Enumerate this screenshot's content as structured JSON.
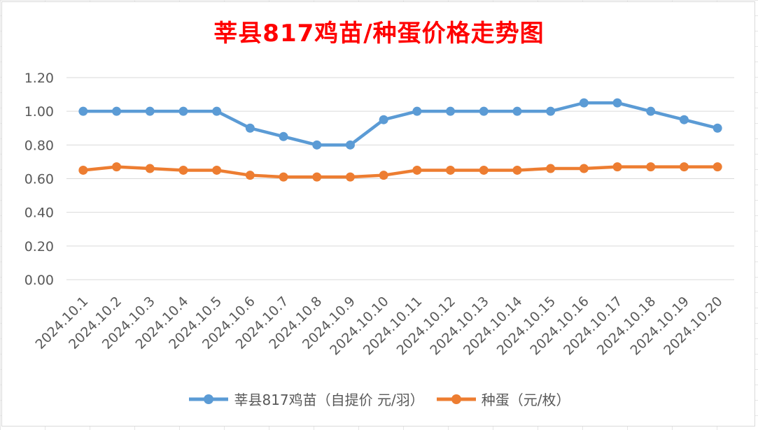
{
  "chart_data": {
    "type": "line",
    "title": "莘县817鸡苗/种蛋价格走势图",
    "categories": [
      "2024.10.1",
      "2024.10.2",
      "2024.10.3",
      "2024.10.4",
      "2024.10.5",
      "2024.10.6",
      "2024.10.7",
      "2024.10.8",
      "2024.10.9",
      "2024.10.10",
      "2024.10.11",
      "2024.10.12",
      "2024.10.13",
      "2024.10.14",
      "2024.10.15",
      "2024.10.16",
      "2024.10.17",
      "2024.10.18",
      "2024.10.19",
      "2024.10.20"
    ],
    "y_ticks": [
      "0.00",
      "0.20",
      "0.40",
      "0.60",
      "0.80",
      "1.00",
      "1.20"
    ],
    "ylim": [
      0,
      1.2
    ],
    "grid": true,
    "legend_position": "bottom",
    "series": [
      {
        "name": "莘县817鸡苗（自提价 元/羽）",
        "color": "#5b9bd5",
        "values": [
          1.0,
          1.0,
          1.0,
          1.0,
          1.0,
          0.9,
          0.85,
          0.8,
          0.8,
          0.95,
          1.0,
          1.0,
          1.0,
          1.0,
          1.0,
          1.05,
          1.05,
          1.0,
          0.95,
          0.9
        ]
      },
      {
        "name": "种蛋（元/枚）",
        "color": "#ed7d31",
        "values": [
          0.65,
          0.67,
          0.66,
          0.65,
          0.65,
          0.62,
          0.61,
          0.61,
          0.61,
          0.62,
          0.65,
          0.65,
          0.65,
          0.65,
          0.66,
          0.66,
          0.67,
          0.67,
          0.67,
          0.67
        ]
      }
    ]
  }
}
